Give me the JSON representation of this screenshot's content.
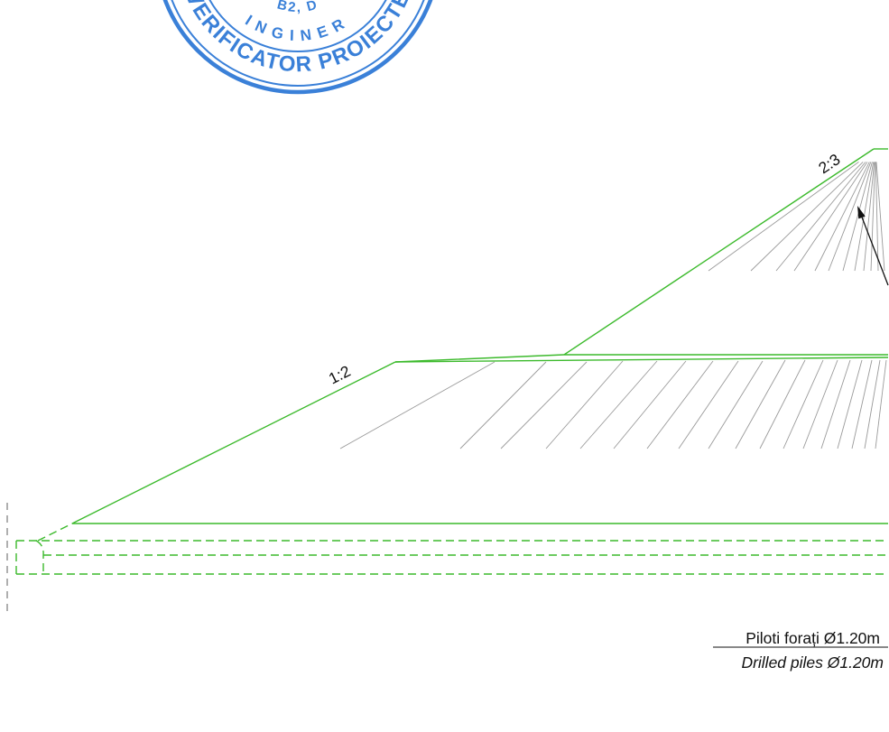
{
  "drawing": {
    "slope_upper_label": "2:3",
    "slope_lower_label": "1:2"
  },
  "pile_note": {
    "romanian": "Piloti forați Ø1.20m",
    "english": "Drilled piles Ø1.20m"
  },
  "stamp": {
    "inner_text": "INGINER",
    "ring_text": "VERIFICATOR PROIECTE",
    "top_fragment": "B2, D"
  },
  "colors": {
    "embankment_line": "#3cba2c",
    "hatch": "#9a9a9a",
    "stamp": "#1f6fd3",
    "text": "#111111",
    "axis_dash": "#7a7a7a",
    "arrow": "#111111"
  }
}
